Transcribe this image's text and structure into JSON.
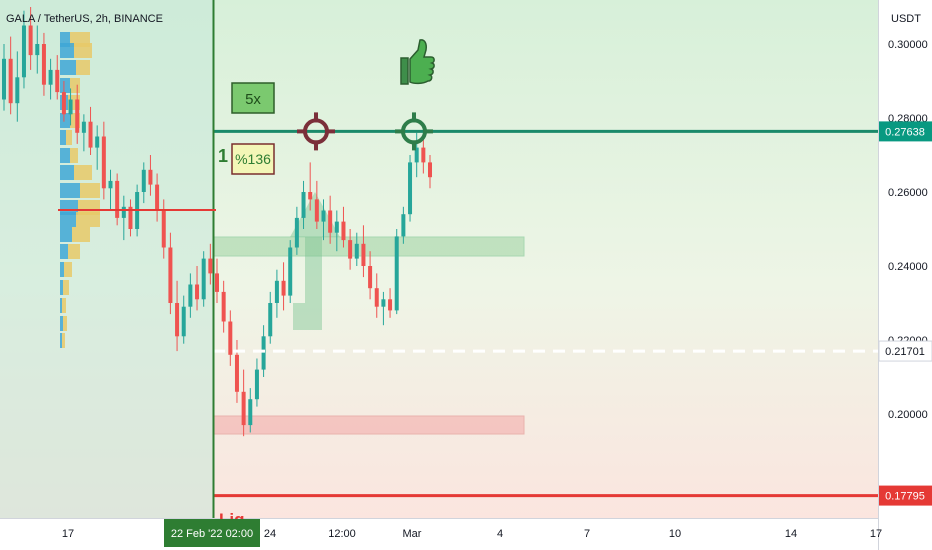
{
  "header": {
    "title": "GALA / TetherUS, 2h, BINANCE"
  },
  "chart_data": {
    "type": "candlestick",
    "title": "GALA / TetherUS, 2h, BINANCE",
    "ylabel": "USDT",
    "ylim": [
      0.17,
      0.31
    ],
    "y_ticks": [
      0.3,
      0.28,
      0.26,
      0.24,
      0.22,
      0.2
    ],
    "x_ticks": [
      "17",
      "24",
      "12:00",
      "Mar",
      "4",
      "7",
      "10",
      "14",
      "17"
    ],
    "x_highlight": "22 Feb '22  02:00",
    "price_labels": [
      {
        "value": "0.27638",
        "color": "#089981"
      },
      {
        "value": "0.21701",
        "color": "#ffffff"
      },
      {
        "value": "0.17795",
        "color": "#e53935"
      }
    ],
    "levels": {
      "target": 0.27638,
      "entry": 0.21701,
      "liquidation": 0.17795
    },
    "annotations": {
      "leverage": "5x",
      "gain": "%136",
      "step": "1",
      "liq": "Liq"
    },
    "colors": {
      "up": "#26a69a",
      "down": "#ef5350",
      "target_line": "#1a8a6a",
      "liq_line": "#e53935",
      "vertical_line": "#2e7d32",
      "demand_zone": "#a5d6a7",
      "resistance_zone": "#f4b6b4"
    },
    "candles": [
      [
        0.285,
        0.3,
        0.282,
        0.296
      ],
      [
        0.296,
        0.302,
        0.281,
        0.284
      ],
      [
        0.284,
        0.298,
        0.279,
        0.291
      ],
      [
        0.291,
        0.309,
        0.288,
        0.305
      ],
      [
        0.305,
        0.31,
        0.293,
        0.297
      ],
      [
        0.297,
        0.305,
        0.292,
        0.3
      ],
      [
        0.3,
        0.303,
        0.286,
        0.289
      ],
      [
        0.289,
        0.296,
        0.285,
        0.293
      ],
      [
        0.293,
        0.297,
        0.285,
        0.287
      ],
      [
        0.287,
        0.29,
        0.279,
        0.281
      ],
      [
        0.281,
        0.288,
        0.278,
        0.285
      ],
      [
        0.285,
        0.289,
        0.273,
        0.276
      ],
      [
        0.276,
        0.281,
        0.271,
        0.279
      ],
      [
        0.279,
        0.283,
        0.27,
        0.272
      ],
      [
        0.272,
        0.278,
        0.266,
        0.275
      ],
      [
        0.275,
        0.279,
        0.258,
        0.261
      ],
      [
        0.261,
        0.266,
        0.255,
        0.263
      ],
      [
        0.263,
        0.265,
        0.251,
        0.253
      ],
      [
        0.253,
        0.259,
        0.247,
        0.256
      ],
      [
        0.256,
        0.258,
        0.248,
        0.25
      ],
      [
        0.25,
        0.262,
        0.248,
        0.26
      ],
      [
        0.26,
        0.268,
        0.257,
        0.266
      ],
      [
        0.266,
        0.27,
        0.259,
        0.262
      ],
      [
        0.262,
        0.265,
        0.252,
        0.255
      ],
      [
        0.255,
        0.258,
        0.242,
        0.245
      ],
      [
        0.245,
        0.249,
        0.227,
        0.23
      ],
      [
        0.23,
        0.236,
        0.217,
        0.221
      ],
      [
        0.221,
        0.232,
        0.219,
        0.229
      ],
      [
        0.229,
        0.238,
        0.226,
        0.235
      ],
      [
        0.235,
        0.24,
        0.228,
        0.231
      ],
      [
        0.231,
        0.244,
        0.229,
        0.242
      ],
      [
        0.242,
        0.246,
        0.235,
        0.238
      ],
      [
        0.238,
        0.242,
        0.23,
        0.233
      ],
      [
        0.233,
        0.236,
        0.222,
        0.225
      ],
      [
        0.225,
        0.228,
        0.213,
        0.216
      ],
      [
        0.216,
        0.22,
        0.203,
        0.206
      ],
      [
        0.206,
        0.212,
        0.194,
        0.197
      ],
      [
        0.197,
        0.207,
        0.195,
        0.204
      ],
      [
        0.204,
        0.215,
        0.202,
        0.212
      ],
      [
        0.212,
        0.224,
        0.21,
        0.221
      ],
      [
        0.221,
        0.233,
        0.219,
        0.23
      ],
      [
        0.23,
        0.239,
        0.226,
        0.236
      ],
      [
        0.236,
        0.241,
        0.228,
        0.232
      ],
      [
        0.232,
        0.247,
        0.23,
        0.245
      ],
      [
        0.245,
        0.256,
        0.243,
        0.253
      ],
      [
        0.253,
        0.263,
        0.25,
        0.26
      ],
      [
        0.26,
        0.268,
        0.255,
        0.258
      ],
      [
        0.258,
        0.263,
        0.25,
        0.252
      ],
      [
        0.252,
        0.258,
        0.247,
        0.255
      ],
      [
        0.255,
        0.259,
        0.246,
        0.249
      ],
      [
        0.249,
        0.255,
        0.244,
        0.252
      ],
      [
        0.252,
        0.256,
        0.245,
        0.247
      ],
      [
        0.247,
        0.25,
        0.239,
        0.242
      ],
      [
        0.242,
        0.249,
        0.24,
        0.246
      ],
      [
        0.246,
        0.251,
        0.237,
        0.24
      ],
      [
        0.24,
        0.244,
        0.231,
        0.234
      ],
      [
        0.234,
        0.238,
        0.226,
        0.229
      ],
      [
        0.229,
        0.233,
        0.224,
        0.231
      ],
      [
        0.231,
        0.234,
        0.226,
        0.228
      ],
      [
        0.228,
        0.25,
        0.227,
        0.248
      ],
      [
        0.248,
        0.256,
        0.246,
        0.254
      ],
      [
        0.254,
        0.27,
        0.252,
        0.268
      ],
      [
        0.268,
        0.276,
        0.264,
        0.272
      ],
      [
        0.272,
        0.275,
        0.265,
        0.268
      ],
      [
        0.268,
        0.27,
        0.261,
        0.264
      ]
    ]
  }
}
